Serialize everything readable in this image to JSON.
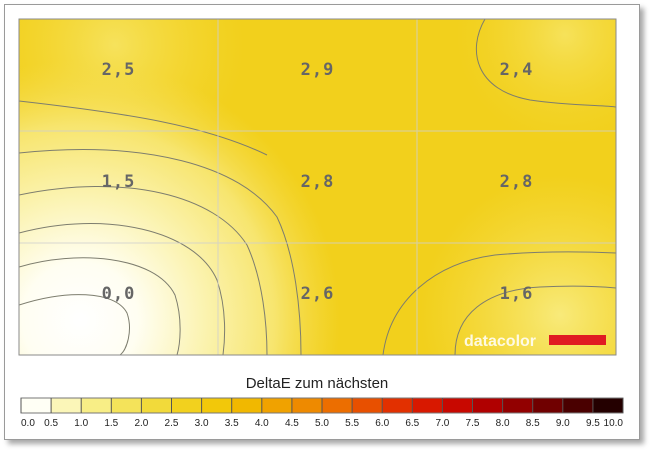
{
  "chart_data": {
    "type": "heatmap",
    "title": "",
    "xlabel": "",
    "ylabel": "",
    "rows": 3,
    "cols": 3,
    "values": [
      [
        "2,5",
        "2,9",
        "2,4"
      ],
      [
        "1,5",
        "2,8",
        "2,8"
      ],
      [
        "0,0",
        "2,6",
        "1,6"
      ]
    ],
    "grid": true,
    "colorbar": {
      "title": "DeltaE zum nächsten",
      "ticks": [
        "0.0",
        "0.5",
        "1.0",
        "1.5",
        "2.0",
        "2.5",
        "3.0",
        "3.5",
        "4.0",
        "4.5",
        "5.0",
        "5.5",
        "6.0",
        "6.5",
        "7.0",
        "7.5",
        "8.0",
        "8.5",
        "9.0",
        "9.5",
        "10.0"
      ],
      "colors": [
        "#fffff5",
        "#fbf6b8",
        "#f8ee86",
        "#f4e35a",
        "#f2da3a",
        "#f2d11e",
        "#f2c80a",
        "#f1b800",
        "#f0a200",
        "#ee8a00",
        "#ec6e00",
        "#e85000",
        "#e23000",
        "#d81800",
        "#c80800",
        "#b00000",
        "#920000",
        "#700000",
        "#4a0000",
        "#240000"
      ]
    },
    "brand": {
      "text": "datacolor",
      "bar_color": "#e01b22"
    }
  }
}
